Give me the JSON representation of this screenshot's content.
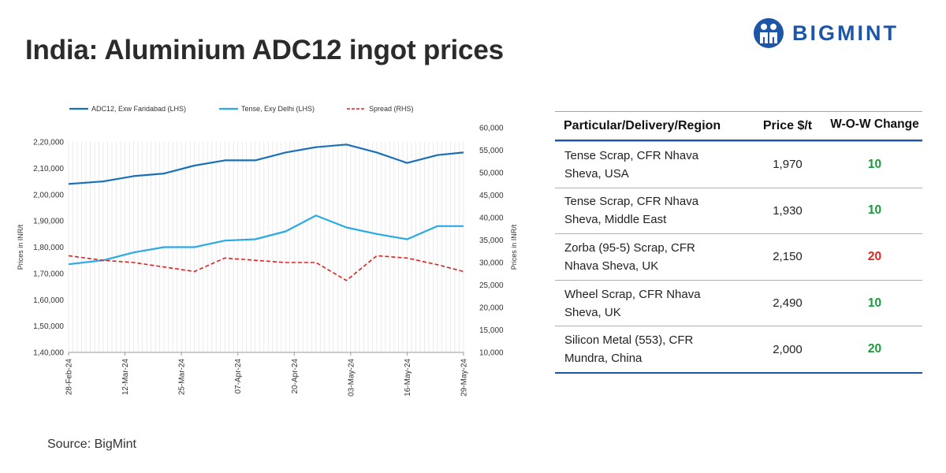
{
  "header": {
    "title": "India: Aluminium ADC12 ingot prices",
    "logo_text": "BIGMINT",
    "brand_color": "#1d56a7"
  },
  "chart_data": {
    "type": "line",
    "x": [
      "28-Feb-24",
      "12-Mar-24",
      "25-Mar-24",
      "07-Apr-24",
      "20-Apr-24",
      "03-May-24",
      "16-May-24",
      "29-May-24"
    ],
    "x_tick_labels": [
      "28-Feb-24",
      "12-Mar-24",
      "25-Mar-24",
      "07-Apr-24",
      "20-Apr-24",
      "03-May-24",
      "16-May-24",
      "29-May-24"
    ],
    "x_range": [
      "2024-02-28",
      "2024-05-29"
    ],
    "y_left": {
      "label": "Prices in INR/t",
      "range": [
        140000,
        220000
      ],
      "ticks": [
        "1,40,000",
        "1,50,000",
        "1,60,000",
        "1,70,000",
        "1,80,000",
        "1,90,000",
        "2,00,000",
        "2,10,000",
        "2,20,000"
      ]
    },
    "y_right": {
      "label": "Prices in INR/t",
      "range": [
        10000,
        60000
      ],
      "ticks": [
        "10,000",
        "15,000",
        "20,000",
        "25,000",
        "30,000",
        "35,000",
        "40,000",
        "45,000",
        "50,000",
        "55,000",
        "60,000"
      ]
    },
    "legend_position": "top",
    "grid": "vertical daily lines",
    "series": [
      {
        "name": "ADC12, Exw Faridabad (LHS)",
        "axis": "left",
        "color": "#1b6fb8",
        "style": "solid",
        "points": [
          [
            "2024-02-28",
            204000
          ],
          [
            "2024-03-07",
            205000
          ],
          [
            "2024-03-14",
            207000
          ],
          [
            "2024-03-21",
            208000
          ],
          [
            "2024-03-28",
            211000
          ],
          [
            "2024-04-04",
            213000
          ],
          [
            "2024-04-11",
            213000
          ],
          [
            "2024-04-18",
            216000
          ],
          [
            "2024-04-25",
            218000
          ],
          [
            "2024-05-02",
            219000
          ],
          [
            "2024-05-09",
            216000
          ],
          [
            "2024-05-16",
            212000
          ],
          [
            "2024-05-23",
            215000
          ],
          [
            "2024-05-29",
            216000
          ]
        ]
      },
      {
        "name": "Tense, Exy Delhi (LHS)",
        "axis": "left",
        "color": "#29a9e6",
        "style": "solid",
        "points": [
          [
            "2024-02-28",
            173500
          ],
          [
            "2024-03-07",
            175000
          ],
          [
            "2024-03-14",
            178000
          ],
          [
            "2024-03-21",
            180000
          ],
          [
            "2024-03-28",
            180000
          ],
          [
            "2024-04-04",
            182500
          ],
          [
            "2024-04-11",
            183000
          ],
          [
            "2024-04-18",
            186000
          ],
          [
            "2024-04-25",
            192000
          ],
          [
            "2024-05-02",
            187500
          ],
          [
            "2024-05-09",
            185000
          ],
          [
            "2024-05-16",
            183000
          ],
          [
            "2024-05-23",
            188000
          ],
          [
            "2024-05-29",
            188000
          ]
        ]
      },
      {
        "name": "Spread (RHS)",
        "axis": "right",
        "color": "#e02020",
        "style": "dashed",
        "points": [
          [
            "2024-02-28",
            31500
          ],
          [
            "2024-03-07",
            30500
          ],
          [
            "2024-03-14",
            30000
          ],
          [
            "2024-03-21",
            29000
          ],
          [
            "2024-03-28",
            28000
          ],
          [
            "2024-04-04",
            31000
          ],
          [
            "2024-04-11",
            30500
          ],
          [
            "2024-04-18",
            30000
          ],
          [
            "2024-04-25",
            30000
          ],
          [
            "2024-05-02",
            26000
          ],
          [
            "2024-05-09",
            31500
          ],
          [
            "2024-05-16",
            31000
          ],
          [
            "2024-05-23",
            29500
          ],
          [
            "2024-05-29",
            28000
          ]
        ]
      }
    ]
  },
  "table": {
    "headers": [
      "Particular/Delivery/Region",
      "Price $/t",
      "W-O-W Change"
    ],
    "rows": [
      {
        "line1": "Tense Scrap, CFR Nhava",
        "line2": "Sheva, USA",
        "price": "1,970",
        "change": "10",
        "change_color": "#1a9a3c"
      },
      {
        "line1": "Tense Scrap, CFR Nhava",
        "line2": "Sheva, Middle East",
        "price": "1,930",
        "change": "10",
        "change_color": "#1a9a3c"
      },
      {
        "line1": "Zorba (95-5) Scrap, CFR",
        "line2": "Nhava Sheva, UK",
        "price": "2,150",
        "change": "20",
        "change_color": "#e02424"
      },
      {
        "line1": "Wheel Scrap, CFR Nhava",
        "line2": "Sheva, UK",
        "price": "2,490",
        "change": "10",
        "change_color": "#1a9a3c"
      },
      {
        "line1": "Silicon Metal (553), CFR",
        "line2": "Mundra, China",
        "price": "2,000",
        "change": "20",
        "change_color": "#1a9a3c"
      }
    ]
  },
  "footer": {
    "source": "Source: BigMint"
  }
}
